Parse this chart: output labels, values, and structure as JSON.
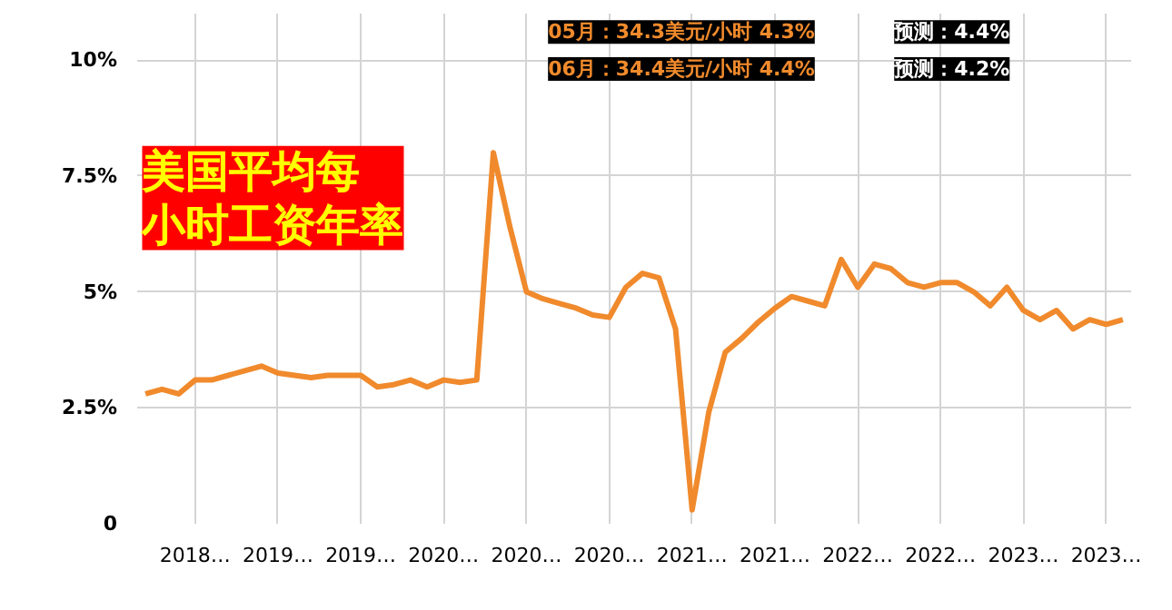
{
  "chart_data": {
    "type": "line",
    "title": "美国平均每小时工资年率",
    "annotations": [
      "05月：34.3美元/小时 4.3%",
      "预测：4.4%",
      "06月：34.4美元/小时 4.4%",
      "预测：4.2%"
    ],
    "categories": [
      null,
      null,
      null,
      "2018…",
      null,
      null,
      null,
      null,
      "2019…",
      null,
      null,
      null,
      null,
      "2019…",
      null,
      null,
      null,
      null,
      "2020…",
      null,
      null,
      null,
      null,
      "2020…",
      null,
      null,
      null,
      null,
      "2020…",
      null,
      null,
      null,
      null,
      "2021…",
      null,
      null,
      null,
      null,
      "2021…",
      null,
      null,
      null,
      null,
      "2022…",
      null,
      null,
      null,
      null,
      "2022…",
      null,
      null,
      null,
      null,
      "2023…",
      null,
      null,
      null,
      null,
      "2023…",
      null
    ],
    "series": [
      {
        "color": "#f08a2c",
        "values": [
          2.8,
          2.9,
          2.8,
          3.1,
          3.1,
          3.2,
          3.3,
          3.4,
          3.25,
          3.2,
          3.15,
          3.2,
          3.2,
          3.2,
          2.95,
          3.0,
          3.1,
          2.95,
          3.1,
          3.05,
          3.1,
          8.0,
          6.4,
          5.0,
          4.85,
          4.75,
          4.65,
          4.5,
          4.45,
          5.1,
          5.4,
          5.3,
          4.2,
          0.3,
          2.4,
          3.7,
          4.0,
          4.35,
          4.65,
          4.9,
          4.8,
          4.7,
          5.7,
          5.1,
          5.6,
          5.5,
          5.2,
          5.1,
          5.2,
          5.2,
          5.0,
          4.7,
          5.1,
          4.6,
          4.4,
          4.6,
          4.2,
          4.4,
          4.3,
          4.4
        ]
      }
    ],
    "ylim": [
      0,
      11
    ],
    "yticks": [
      0,
      {
        "value": 2.5,
        "label": "2.5%"
      },
      {
        "value": 5,
        "label": "5%"
      },
      {
        "value": 7.5,
        "label": "7.5%"
      },
      {
        "value": 10,
        "label": "10%"
      }
    ],
    "grid": true,
    "marker": "none",
    "line_style": "solid"
  }
}
